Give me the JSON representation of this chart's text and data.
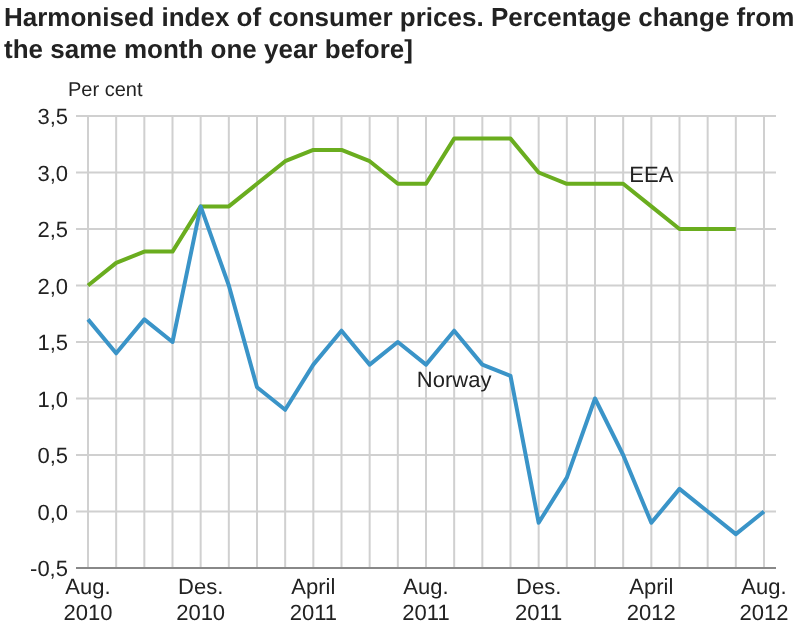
{
  "chart_data": {
    "type": "line",
    "title": "Harmonised index of consumer prices. Percentage change from the same month one year before]",
    "ylabel": "Per cent",
    "categories": [
      "Aug. 2010",
      null,
      null,
      null,
      "Des. 2010",
      null,
      null,
      null,
      "April 2011",
      null,
      null,
      null,
      "Aug. 2011",
      null,
      null,
      null,
      "Des. 2011",
      null,
      null,
      null,
      "April 2012",
      null,
      null,
      null,
      "Aug. 2012"
    ],
    "series": [
      {
        "name": "EEA",
        "color": "#6aad1f",
        "values": [
          2.0,
          2.2,
          2.3,
          2.3,
          2.7,
          2.7,
          2.9,
          3.1,
          3.2,
          3.2,
          3.1,
          2.9,
          2.9,
          3.3,
          3.3,
          3.3,
          3.0,
          2.9,
          2.9,
          2.9,
          2.7,
          2.5,
          2.5,
          2.5,
          null
        ]
      },
      {
        "name": "Norway",
        "color": "#3a94c8",
        "values": [
          1.7,
          1.4,
          1.7,
          1.5,
          2.7,
          2.0,
          1.1,
          0.9,
          1.3,
          1.6,
          1.3,
          1.5,
          1.3,
          1.6,
          1.3,
          1.2,
          -0.1,
          0.3,
          1.0,
          0.5,
          -0.1,
          0.2,
          0.0,
          -0.2,
          0.0
        ]
      }
    ],
    "ylim": [
      -0.5,
      3.5
    ],
    "yticks": [
      {
        "value": -0.5,
        "label": "-0,5"
      },
      {
        "value": 0,
        "label": "0,0"
      },
      {
        "value": 0.5,
        "label": "0,5"
      },
      {
        "value": 1,
        "label": "1,0"
      },
      {
        "value": 1.5,
        "label": "1,5"
      },
      {
        "value": 2,
        "label": "2,0"
      },
      {
        "value": 2.5,
        "label": "2,5"
      },
      {
        "value": 3,
        "label": "3,0"
      },
      {
        "value": 3.5,
        "label": "3,5"
      }
    ],
    "grid": true
  }
}
